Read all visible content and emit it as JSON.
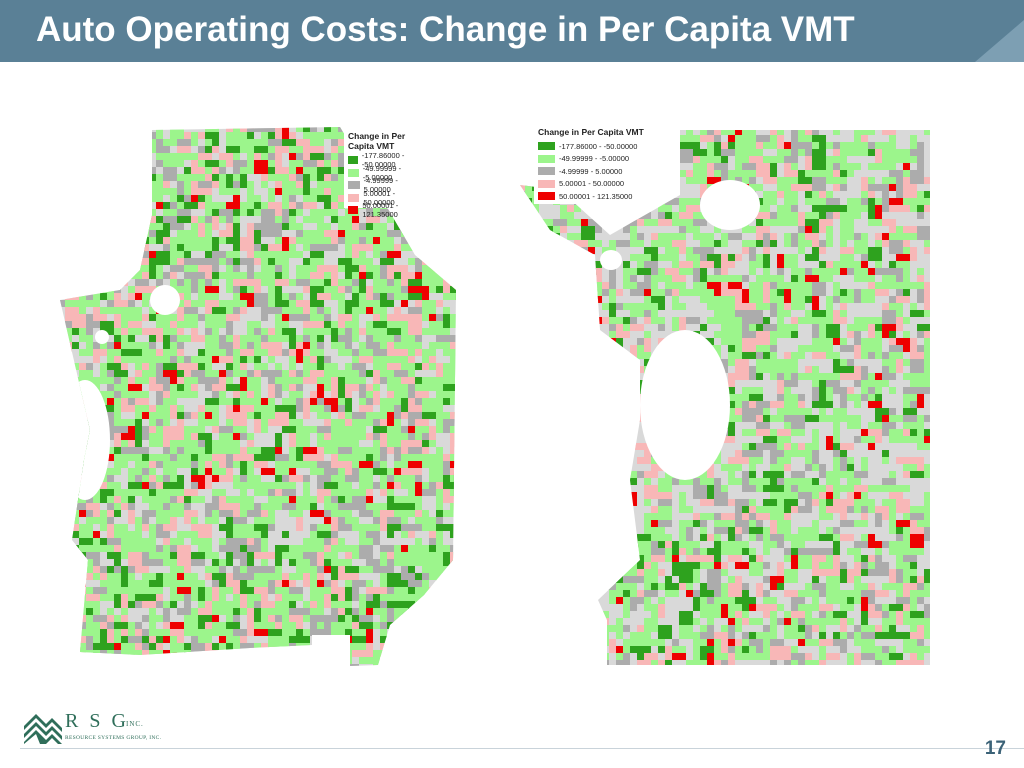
{
  "slide": {
    "title": "Auto Operating Costs: Change in Per Capita VMT",
    "page_number": "17"
  },
  "colors": {
    "title_bar": "#5a8096",
    "title_bar_light": "#6f93a8",
    "base_gray": "#d9d9d9",
    "water": "#ffffff"
  },
  "legend": {
    "title": "Change in Per Capita VMT",
    "items": [
      {
        "label": "-177.86000 - -50.00000",
        "color": "#2ea21e"
      },
      {
        "label": "-49.99999 - -5.00000",
        "color": "#9cf58c"
      },
      {
        "label": "-4.99999 - 5.00000",
        "color": "#acacac"
      },
      {
        "label": "5.00001 - 50.00000",
        "color": "#f8b7b7"
      },
      {
        "label": "50.00001 - 121.35000",
        "color": "#ee0000"
      }
    ]
  },
  "maps": [
    {
      "name": "left-map",
      "legend": "left"
    },
    {
      "name": "right-map",
      "legend": "right"
    }
  ],
  "logo": {
    "letters": "R S G",
    "inc": "INC.",
    "subtitle": "RESOURCE SYSTEMS GROUP, INC."
  }
}
